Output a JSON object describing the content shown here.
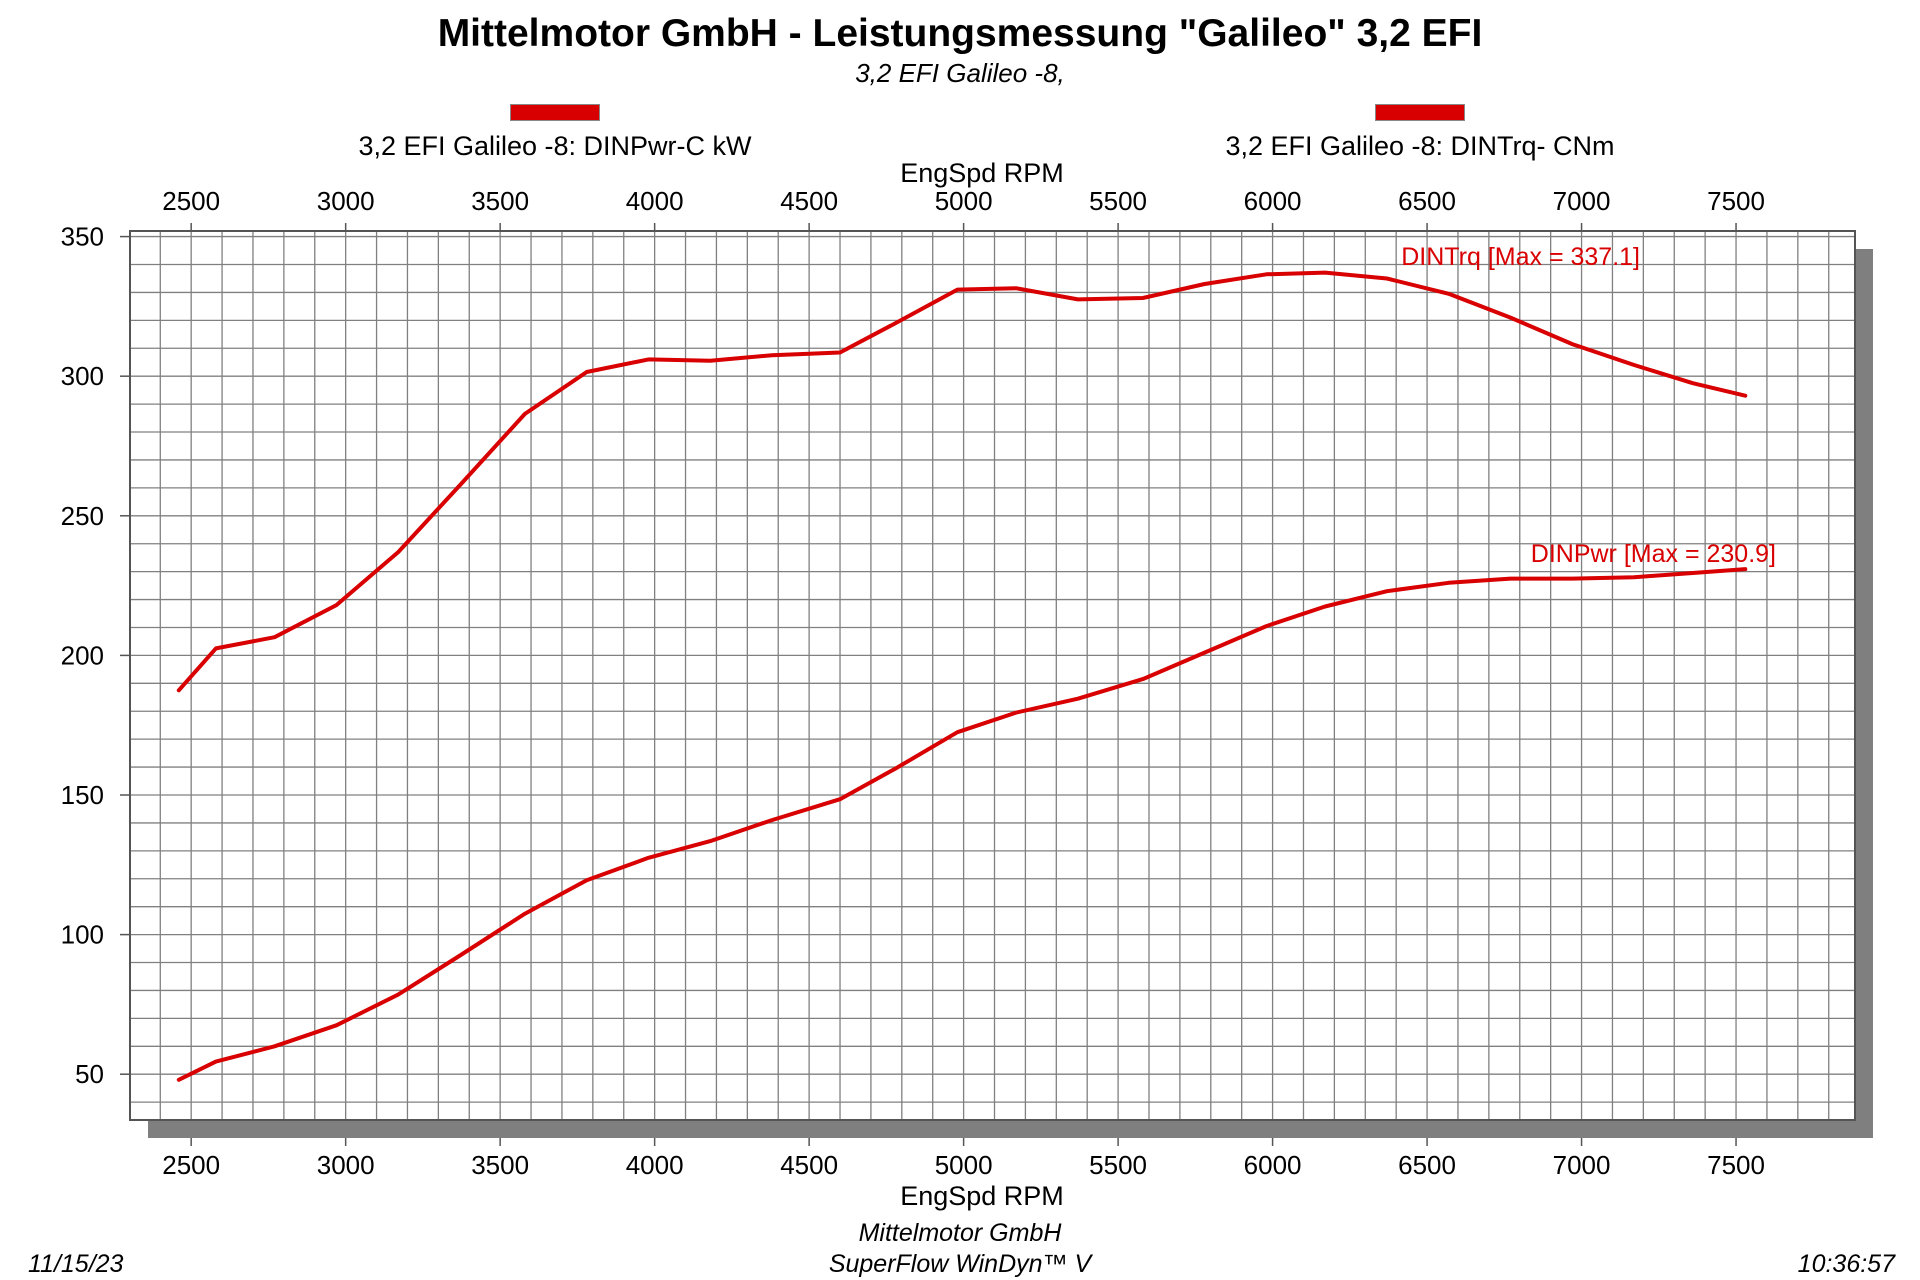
{
  "header": {
    "title": "Mittelmotor GmbH - Leistungsmessung \"Galileo\" 3,2 EFI",
    "subtitle": "3,2 EFI Galileo -8,"
  },
  "legend": {
    "power_label": "3,2 EFI Galileo -8: DINPwr-C kW",
    "torque_label": "3,2 EFI Galileo -8: DINTrq- CNm"
  },
  "footer": {
    "date": "11/15/23",
    "time": "10:36:57",
    "company": "Mittelmotor GmbH",
    "software": "SuperFlow WinDyn™ V"
  },
  "colors": {
    "series": "#d80000",
    "grid": "#808080",
    "shadow": "#7f7f7f"
  },
  "chart_data": {
    "type": "line",
    "xlabel_top": "EngSpd  RPM",
    "xlabel_bottom": "EngSpd  RPM",
    "xlim": [
      2300,
      7900
    ],
    "ylim": [
      33,
      352
    ],
    "x_ticks": [
      2500,
      3000,
      3500,
      4000,
      4500,
      5000,
      5500,
      6000,
      6500,
      7000,
      7500
    ],
    "y_ticks": [
      50,
      100,
      150,
      200,
      250,
      300,
      350
    ],
    "grid": true,
    "annotations": {
      "torque_max": "DINTrq [Max = 337.1]",
      "power_max": "DINPwr [Max = 230.9]"
    },
    "series": [
      {
        "name": "3,2 EFI Galileo -8: DINTrq- CNm",
        "x": [
          2460,
          2580,
          2770,
          2970,
          3170,
          3370,
          3580,
          3780,
          3980,
          4180,
          4380,
          4600,
          4780,
          4980,
          5170,
          5370,
          5580,
          5780,
          5980,
          6170,
          6370,
          6570,
          6770,
          6970,
          7170,
          7360,
          7530
        ],
        "y": [
          187.5,
          202.5,
          206.5,
          218,
          237,
          261,
          286.5,
          301.5,
          306,
          305.5,
          307.5,
          308.5,
          319,
          331,
          331.5,
          327.5,
          328,
          333,
          336.5,
          337.1,
          335,
          329.5,
          321,
          311.5,
          304,
          297.5,
          293
        ]
      },
      {
        "name": "3,2 EFI Galileo -8: DINPwr-C kW",
        "x": [
          2460,
          2580,
          2770,
          2970,
          3170,
          3370,
          3580,
          3780,
          3980,
          4180,
          4380,
          4600,
          4780,
          4980,
          5170,
          5370,
          5580,
          5780,
          5980,
          6170,
          6370,
          6570,
          6770,
          6970,
          7170,
          7360,
          7530
        ],
        "y": [
          48,
          54.5,
          60,
          67.5,
          78.5,
          92.5,
          107.5,
          119.5,
          127.5,
          133.5,
          141,
          148.5,
          159.5,
          172.5,
          179.5,
          184.5,
          191.5,
          201,
          210.5,
          217.5,
          223,
          226,
          227.5,
          227.5,
          228,
          229.5,
          230.9
        ]
      }
    ]
  }
}
